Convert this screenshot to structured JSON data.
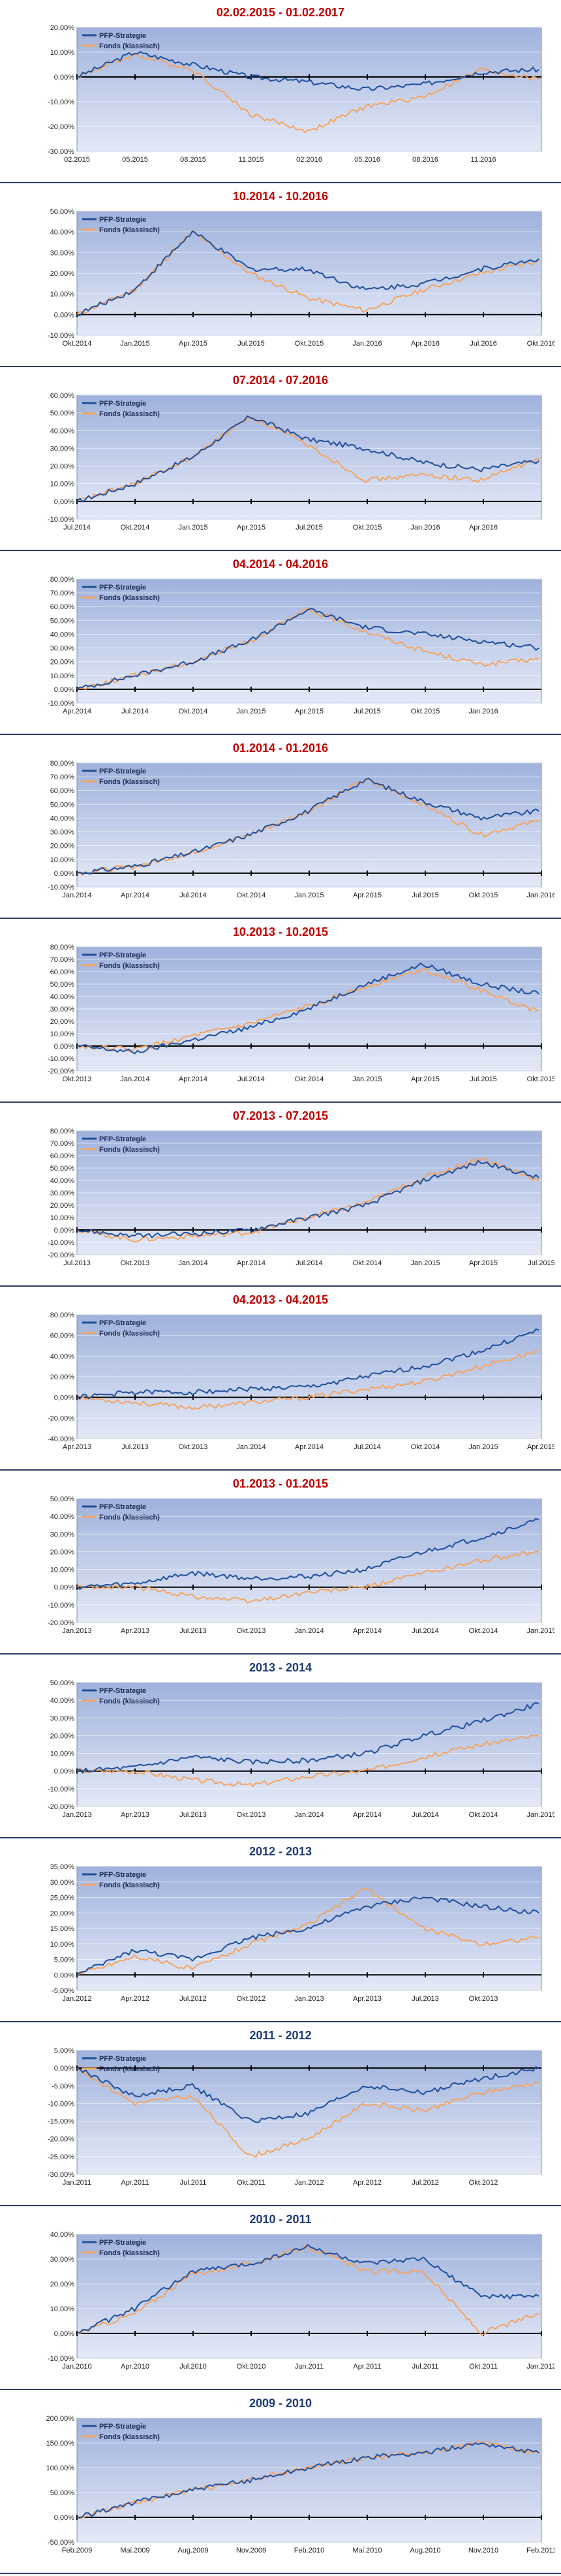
{
  "legend": {
    "strategy": "PFP-Strategie",
    "fund": "Fonds (klassisch)"
  },
  "colors": {
    "strategy": "#1f4e9c",
    "fund": "#f4a460",
    "title_red": "#c00000",
    "title_blue": "#1f3b78",
    "plot_bg_top": "#9fb2dd",
    "plot_bg_bottom": "#e4e9f6"
  },
  "chart_data": [
    {
      "id": "c1",
      "title": "02.02.2015 - 01.02.2017",
      "title_style": "red",
      "type": "line",
      "ylim": [
        -30,
        20
      ],
      "yticks": [
        "20,00%",
        "10,00%",
        "0,00%",
        "-10,00%",
        "-20,00%",
        "-30,00%"
      ],
      "xticks": [
        "02.2015",
        "05.2015",
        "08.2015",
        "11.2015",
        "02.2016",
        "05.2016",
        "08.2016",
        "11.2016"
      ],
      "x": [
        0,
        1,
        2,
        3,
        4,
        5,
        6,
        7,
        8
      ],
      "series": [
        {
          "name": "PFP-Strategie",
          "values": [
            0,
            10,
            5,
            0,
            -2,
            -5,
            -3,
            2,
            3
          ]
        },
        {
          "name": "Fonds (klassisch)",
          "values": [
            0,
            9,
            3,
            -15,
            -22,
            -12,
            -8,
            3,
            -1
          ]
        }
      ]
    },
    {
      "id": "c2",
      "title": "10.2014 - 10.2016",
      "title_style": "red",
      "type": "line",
      "ylim": [
        -10,
        50
      ],
      "yticks": [
        "50,00%",
        "40,00%",
        "30,00%",
        "20,00%",
        "10,00%",
        "0,00%",
        "-10,00%"
      ],
      "xticks": [
        "Okt.2014",
        "Jan.2015",
        "Apr.2015",
        "Jul.2015",
        "Okt.2015",
        "Jan.2016",
        "Apr.2016",
        "Jul.2016",
        "Okt.2016"
      ],
      "x": [
        0,
        1,
        2,
        3,
        4,
        5,
        6,
        7,
        8
      ],
      "series": [
        {
          "name": "PFP-Strategie",
          "values": [
            0,
            12,
            40,
            22,
            22,
            12,
            15,
            22,
            27
          ]
        },
        {
          "name": "Fonds (klassisch)",
          "values": [
            0,
            12,
            40,
            20,
            8,
            2,
            12,
            20,
            26
          ]
        }
      ]
    },
    {
      "id": "c3",
      "title": "07.2014 - 07.2016",
      "title_style": "red",
      "type": "line",
      "ylim": [
        -10,
        60
      ],
      "yticks": [
        "60,00%",
        "50,00%",
        "40,00%",
        "30,00%",
        "20,00%",
        "10,00%",
        "0,00%",
        "-10,00%"
      ],
      "xticks": [
        "Jul.2014",
        "Okt.2014",
        "Jan.2015",
        "Apr.2015",
        "Jul.2015",
        "Okt.2015",
        "Jan.2016",
        "Apr.2016"
      ],
      "x": [
        0,
        1,
        2,
        3,
        4,
        5,
        6,
        7,
        8
      ],
      "series": [
        {
          "name": "PFP-Strategie",
          "values": [
            0,
            10,
            25,
            48,
            35,
            30,
            22,
            18,
            23
          ]
        },
        {
          "name": "Fonds (klassisch)",
          "values": [
            0,
            10,
            25,
            48,
            32,
            12,
            15,
            12,
            24
          ]
        }
      ]
    },
    {
      "id": "c4",
      "title": "04.2014 - 04.2016",
      "title_style": "red",
      "type": "line",
      "ylim": [
        -10,
        80
      ],
      "yticks": [
        "80,00%",
        "70,00%",
        "60,00%",
        "50,00%",
        "40,00%",
        "30,00%",
        "20,00%",
        "10,00%",
        "0,00%",
        "-10,00%"
      ],
      "xticks": [
        "Apr.2014",
        "Jul.2014",
        "Okt.2014",
        "Jan.2015",
        "Apr.2015",
        "Jul.2015",
        "Okt.2015",
        "Jan.2016"
      ],
      "x": [
        0,
        1,
        2,
        3,
        4,
        5,
        6,
        7,
        8
      ],
      "series": [
        {
          "name": "PFP-Strategie",
          "values": [
            0,
            10,
            20,
            35,
            58,
            45,
            40,
            35,
            30
          ]
        },
        {
          "name": "Fonds (klassisch)",
          "values": [
            0,
            10,
            20,
            35,
            58,
            42,
            28,
            18,
            22
          ]
        }
      ]
    },
    {
      "id": "c5",
      "title": "01.2014 - 01.2016",
      "title_style": "red",
      "type": "line",
      "ylim": [
        -10,
        80
      ],
      "yticks": [
        "80,00%",
        "70,00%",
        "60,00%",
        "50,00%",
        "40,00%",
        "30,00%",
        "20,00%",
        "10,00%",
        "0,00%",
        "-10,00%"
      ],
      "xticks": [
        "Jan.2014",
        "Apr.2014",
        "Jul.2014",
        "Okt.2014",
        "Jan.2015",
        "Apr.2015",
        "Jul.2015",
        "Okt.2015",
        "Jan.2016"
      ],
      "x": [
        0,
        1,
        2,
        3,
        4,
        5,
        6,
        7,
        8
      ],
      "series": [
        {
          "name": "PFP-Strategie",
          "values": [
            0,
            5,
            15,
            28,
            45,
            68,
            52,
            40,
            45
          ]
        },
        {
          "name": "Fonds (klassisch)",
          "values": [
            0,
            5,
            15,
            28,
            45,
            68,
            50,
            28,
            38
          ]
        }
      ]
    },
    {
      "id": "c6",
      "title": "10.2013 - 10.2015",
      "title_style": "red",
      "type": "line",
      "ylim": [
        -20,
        80
      ],
      "yticks": [
        "80,00%",
        "70,00%",
        "60,00%",
        "50,00%",
        "40,00%",
        "30,00%",
        "20,00%",
        "10,00%",
        "0,00%",
        "-10,00%",
        "-20,00%"
      ],
      "xticks": [
        "Okt.2013",
        "Jan.2014",
        "Apr.2014",
        "Jul.2014",
        "Okt.2014",
        "Jan.2015",
        "Apr.2015",
        "Jul.2015",
        "Okt.2015"
      ],
      "x": [
        0,
        1,
        2,
        3,
        4,
        5,
        6,
        7,
        8
      ],
      "series": [
        {
          "name": "PFP-Strategie",
          "values": [
            0,
            -5,
            5,
            15,
            30,
            50,
            66,
            50,
            42
          ]
        },
        {
          "name": "Fonds (klassisch)",
          "values": [
            0,
            -3,
            8,
            18,
            32,
            48,
            62,
            45,
            28
          ]
        }
      ]
    },
    {
      "id": "c7",
      "title": "07.2013 - 07.2015",
      "title_style": "red",
      "type": "line",
      "ylim": [
        -20,
        80
      ],
      "yticks": [
        "80,00%",
        "70,00%",
        "60,00%",
        "50,00%",
        "40,00%",
        "30,00%",
        "20,00%",
        "10,00%",
        "0,00%",
        "-10,00%",
        "-20,00%"
      ],
      "xticks": [
        "Jul.2013",
        "Okt.2013",
        "Jan.2014",
        "Apr.2014",
        "Jul.2014",
        "Okt.2014",
        "Jan.2015",
        "Apr.2015",
        "Jul.2015"
      ],
      "x": [
        0,
        1,
        2,
        3,
        4,
        5,
        6,
        7,
        8
      ],
      "series": [
        {
          "name": "PFP-Strategie",
          "values": [
            0,
            -5,
            -3,
            0,
            10,
            20,
            40,
            55,
            42
          ]
        },
        {
          "name": "Fonds (klassisch)",
          "values": [
            0,
            -8,
            -5,
            -2,
            10,
            22,
            42,
            58,
            40
          ]
        }
      ]
    },
    {
      "id": "c8",
      "title": "04.2013 - 04.2015",
      "title_style": "red",
      "type": "line",
      "ylim": [
        -40,
        80
      ],
      "yticks": [
        "80,00%",
        "60,00%",
        "40,00%",
        "20,00%",
        "0,00%",
        "-20,00%",
        "-40,00%"
      ],
      "xticks": [
        "Apr.2013",
        "Jul.2013",
        "Okt.2013",
        "Jan.2014",
        "Apr.2014",
        "Jul.2014",
        "Okt.2014",
        "Jan.2015",
        "Apr.2015"
      ],
      "x": [
        0,
        1,
        2,
        3,
        4,
        5,
        6,
        7,
        8
      ],
      "series": [
        {
          "name": "PFP-Strategie",
          "values": [
            0,
            5,
            5,
            8,
            10,
            20,
            30,
            45,
            65
          ]
        },
        {
          "name": "Fonds (klassisch)",
          "values": [
            0,
            -5,
            -10,
            -5,
            0,
            8,
            15,
            30,
            45
          ]
        }
      ]
    },
    {
      "id": "c9",
      "title": "01.2013 - 01.2015",
      "title_style": "red",
      "type": "line",
      "ylim": [
        -20,
        50
      ],
      "yticks": [
        "50,00%",
        "40,00%",
        "30,00%",
        "20,00%",
        "10,00%",
        "0,00%",
        "-10,00%",
        "-20,00%"
      ],
      "xticks": [
        "Jan.2013",
        "Apr.2013",
        "Jul.2013",
        "Okt.2013",
        "Jan.2014",
        "Apr.2014",
        "Jul.2014",
        "Okt.2014",
        "Jan.2015"
      ],
      "x": [
        0,
        1,
        2,
        3,
        4,
        5,
        6,
        7,
        8
      ],
      "series": [
        {
          "name": "PFP-Strategie",
          "values": [
            0,
            2,
            8,
            5,
            6,
            10,
            20,
            28,
            38
          ]
        },
        {
          "name": "Fonds (klassisch)",
          "values": [
            0,
            0,
            -5,
            -8,
            -3,
            0,
            8,
            15,
            20
          ]
        }
      ]
    },
    {
      "id": "c10",
      "title": "2013 - 2014",
      "title_style": "blue",
      "type": "line",
      "ylim": [
        -20,
        50
      ],
      "yticks": [
        "50,00%",
        "40,00%",
        "30,00%",
        "20,00%",
        "10,00%",
        "0,00%",
        "-10,00%",
        "-20,00%"
      ],
      "xticks": [
        "Jan.2013",
        "Apr.2013",
        "Jul.2013",
        "Okt.2013",
        "Jan.2014",
        "Apr.2014",
        "Jul.2014",
        "Okt.2014",
        "Jan.2015"
      ],
      "x": [
        0,
        1,
        2,
        3,
        4,
        5,
        6,
        7,
        8
      ],
      "series": [
        {
          "name": "PFP-Strategie",
          "values": [
            0,
            2,
            8,
            5,
            6,
            10,
            20,
            28,
            38
          ]
        },
        {
          "name": "Fonds (klassisch)",
          "values": [
            0,
            0,
            -5,
            -8,
            -3,
            0,
            8,
            15,
            20
          ]
        }
      ]
    },
    {
      "id": "c11",
      "title": "2012 - 2013",
      "title_style": "blue",
      "type": "line",
      "ylim": [
        -5,
        35
      ],
      "yticks": [
        "35,00%",
        "30,00%",
        "25,00%",
        "20,00%",
        "15,00%",
        "10,00%",
        "5,00%",
        "0,00%",
        "-5,00%"
      ],
      "xticks": [
        "Jan.2012",
        "Apr.2012",
        "Jul.2012",
        "Okt.2012",
        "Jan.2013",
        "Apr.2013",
        "Jul.2013",
        "Okt.2013"
      ],
      "x": [
        0,
        1,
        2,
        3,
        4,
        5,
        6,
        7,
        8
      ],
      "series": [
        {
          "name": "PFP-Strategie",
          "values": [
            0,
            8,
            5,
            12,
            15,
            22,
            25,
            22,
            20
          ]
        },
        {
          "name": "Fonds (klassisch)",
          "values": [
            0,
            6,
            2,
            10,
            16,
            28,
            15,
            10,
            12
          ]
        }
      ]
    },
    {
      "id": "c12",
      "title": "2011 - 2012",
      "title_style": "blue",
      "type": "line",
      "ylim": [
        -30,
        5
      ],
      "yticks": [
        "5,00%",
        "0,00%",
        "-5,00%",
        "-10,00%",
        "-15,00%",
        "-20,00%",
        "-25,00%",
        "-30,00%"
      ],
      "xticks": [
        "Jan.2011",
        "Apr.2011",
        "Jul.2011",
        "Okt.2011",
        "Jan.2012",
        "Apr.2012",
        "Jul.2012",
        "Okt.2012"
      ],
      "x": [
        0,
        1,
        2,
        3,
        4,
        5,
        6,
        7,
        8
      ],
      "series": [
        {
          "name": "PFP-Strategie",
          "values": [
            0,
            -8,
            -5,
            -15,
            -13,
            -5,
            -7,
            -3,
            0
          ]
        },
        {
          "name": "Fonds (klassisch)",
          "values": [
            0,
            -10,
            -8,
            -25,
            -20,
            -10,
            -12,
            -7,
            -4
          ]
        }
      ]
    },
    {
      "id": "c13",
      "title": "2010 - 2011",
      "title_style": "blue",
      "type": "line",
      "ylim": [
        -10,
        40
      ],
      "yticks": [
        "40,00%",
        "30,00%",
        "20,00%",
        "10,00%",
        "0,00%",
        "-10,00%"
      ],
      "xticks": [
        "Jan.2010",
        "Apr.2010",
        "Jul.2010",
        "Okt.2010",
        "Jan.2011",
        "Apr.2011",
        "Jul.2011",
        "Okt.2011",
        "Jan.2012"
      ],
      "x": [
        0,
        1,
        2,
        3,
        4,
        5,
        6,
        7,
        8
      ],
      "series": [
        {
          "name": "PFP-Strategie",
          "values": [
            0,
            10,
            25,
            28,
            35,
            28,
            30,
            15,
            15
          ]
        },
        {
          "name": "Fonds (klassisch)",
          "values": [
            0,
            8,
            24,
            28,
            35,
            25,
            25,
            0,
            8
          ]
        }
      ]
    },
    {
      "id": "c14",
      "title": "2009 - 2010",
      "title_style": "blue",
      "type": "line",
      "ylim": [
        -50,
        200
      ],
      "yticks": [
        "200,00%",
        "150,00%",
        "100,00%",
        "50,00%",
        "0,00%",
        "-50,00%"
      ],
      "xticks": [
        "Feb.2009",
        "Mai.2009",
        "Aug.2009",
        "Nov.2009",
        "Feb.2010",
        "Mai.2010",
        "Aug.2010",
        "Nov.2010",
        "Feb.2011"
      ],
      "x": [
        0,
        1,
        2,
        3,
        4,
        5,
        6,
        7,
        8
      ],
      "series": [
        {
          "name": "PFP-Strategie",
          "values": [
            0,
            30,
            55,
            75,
            100,
            120,
            130,
            150,
            130
          ]
        },
        {
          "name": "Fonds (klassisch)",
          "values": [
            0,
            30,
            55,
            75,
            100,
            120,
            130,
            150,
            130
          ]
        }
      ]
    }
  ]
}
